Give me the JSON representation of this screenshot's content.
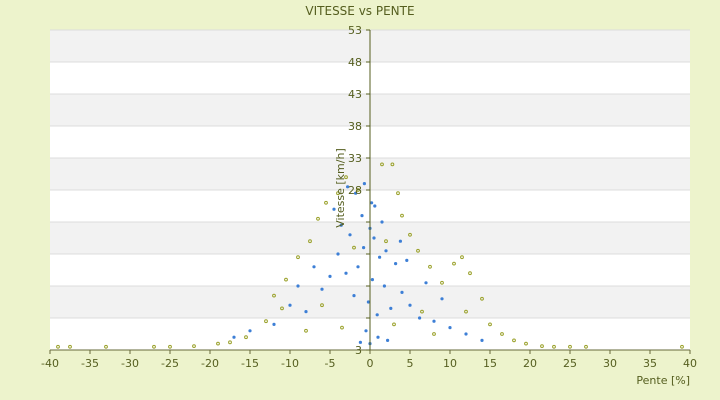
{
  "chart_data": {
    "type": "scatter",
    "title": "VITESSE vs PENTE",
    "xlabel": "Pente [%]",
    "ylabel": "Vitesse [km/h]",
    "xlim": [
      -40,
      40
    ],
    "ylim": [
      3,
      53
    ],
    "x_ticks": [
      -40,
      -35,
      -30,
      -25,
      -20,
      -15,
      -10,
      -5,
      0,
      5,
      10,
      15,
      20,
      25,
      30,
      35,
      40
    ],
    "y_ticks": [
      3,
      8,
      13,
      18,
      23,
      28,
      33,
      38,
      43,
      48,
      53
    ],
    "y_tick_labels": [
      "3",
      "",
      "",
      "",
      "",
      "28",
      "33",
      "38",
      "43",
      "48",
      "53"
    ],
    "grid": "horizontal alternating bands",
    "legend": "none",
    "series": [
      {
        "marker_color": "#3d7fd6",
        "values": [
          [
            0.0,
            22.0
          ],
          [
            0.5,
            20.5
          ],
          [
            -0.8,
            19.0
          ],
          [
            1.2,
            17.5
          ],
          [
            -1.5,
            16.0
          ],
          [
            0.3,
            14.0
          ],
          [
            2.0,
            18.5
          ],
          [
            -2.5,
            21.0
          ],
          [
            1.8,
            13.0
          ],
          [
            -0.2,
            10.5
          ],
          [
            0.9,
            8.5
          ],
          [
            -3.0,
            15.0
          ],
          [
            3.2,
            16.5
          ],
          [
            -1.0,
            24.0
          ],
          [
            0.6,
            25.5
          ],
          [
            -2.0,
            11.5
          ],
          [
            2.6,
            9.5
          ],
          [
            -4.0,
            18.0
          ],
          [
            4.0,
            12.0
          ],
          [
            -0.5,
            6.0
          ],
          [
            1.0,
            5.0
          ],
          [
            -1.8,
            27.5
          ],
          [
            0.2,
            26.0
          ],
          [
            5.0,
            10.0
          ],
          [
            -5.0,
            14.5
          ],
          [
            -3.6,
            22.5
          ],
          [
            3.8,
            20.0
          ],
          [
            6.2,
            8.0
          ],
          [
            -6.0,
            12.5
          ],
          [
            -8.0,
            9.0
          ],
          [
            8.0,
            7.5
          ],
          [
            -10.0,
            10.0
          ],
          [
            10.0,
            6.5
          ],
          [
            -12.0,
            7.0
          ],
          [
            12.0,
            5.5
          ],
          [
            -2.8,
            28.5
          ],
          [
            1.5,
            23.0
          ],
          [
            -0.7,
            29.0
          ],
          [
            0.0,
            4.0
          ],
          [
            2.2,
            4.5
          ],
          [
            -1.2,
            4.2
          ],
          [
            -7.0,
            16.0
          ],
          [
            7.0,
            13.5
          ],
          [
            -4.5,
            25.0
          ],
          [
            4.6,
            17.0
          ],
          [
            -15.0,
            6.0
          ],
          [
            14.0,
            4.5
          ],
          [
            -9.0,
            13.0
          ],
          [
            9.0,
            11.0
          ],
          [
            -17.0,
            5.0
          ]
        ]
      },
      {
        "marker_color": "#9aa12a",
        "values": [
          [
            -39.0,
            3.5
          ],
          [
            -37.5,
            3.5
          ],
          [
            -33.0,
            3.5
          ],
          [
            -27.0,
            3.5
          ],
          [
            -25.0,
            3.5
          ],
          [
            -22.0,
            3.6
          ],
          [
            -19.0,
            4.0
          ],
          [
            -17.5,
            4.2
          ],
          [
            -15.5,
            5.0
          ],
          [
            -13.0,
            7.5
          ],
          [
            -11.0,
            9.5
          ],
          [
            -10.5,
            14.0
          ],
          [
            -9.0,
            17.5
          ],
          [
            -7.5,
            20.0
          ],
          [
            -6.5,
            23.5
          ],
          [
            -5.5,
            26.0
          ],
          [
            -4.0,
            27.5
          ],
          [
            -3.0,
            30.0
          ],
          [
            -1.5,
            28.0
          ],
          [
            1.5,
            32.0
          ],
          [
            2.8,
            32.0
          ],
          [
            3.5,
            27.5
          ],
          [
            4.0,
            24.0
          ],
          [
            5.0,
            21.0
          ],
          [
            6.0,
            18.5
          ],
          [
            7.5,
            16.0
          ],
          [
            9.0,
            13.5
          ],
          [
            10.5,
            16.5
          ],
          [
            11.5,
            17.5
          ],
          [
            12.5,
            15.0
          ],
          [
            14.0,
            11.0
          ],
          [
            15.0,
            7.0
          ],
          [
            16.5,
            5.5
          ],
          [
            18.0,
            4.5
          ],
          [
            19.5,
            4.0
          ],
          [
            21.5,
            3.6
          ],
          [
            23.0,
            3.5
          ],
          [
            25.0,
            3.5
          ],
          [
            27.0,
            3.5
          ],
          [
            39.0,
            3.5
          ],
          [
            -8.0,
            6.0
          ],
          [
            8.0,
            5.5
          ],
          [
            -12.0,
            11.5
          ],
          [
            12.0,
            9.0
          ],
          [
            -6.0,
            10.0
          ],
          [
            6.5,
            9.0
          ],
          [
            -3.5,
            6.5
          ],
          [
            3.0,
            7.0
          ],
          [
            -2.0,
            19.0
          ],
          [
            2.0,
            20.0
          ]
        ]
      }
    ]
  }
}
